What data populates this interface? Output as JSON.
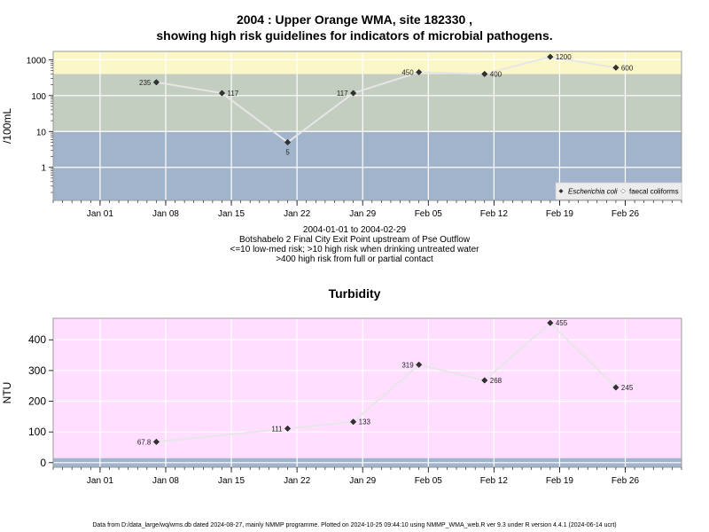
{
  "header": {
    "title_line1": "2004 : Upper Orange WMA, site 182330 ,",
    "title_line2": "showing high risk guidelines for indicators of microbial pathogens."
  },
  "caption": {
    "line1": "2004-01-01 to 2004-02-29",
    "line2": "Botshabelo 2 Final City Exit Point upstream of Pse Outflow",
    "line3": "<=10 low-med risk; >10 high risk when drinking untreated water",
    "line4": ">400 high risk from full or partial contact"
  },
  "footer": {
    "text": "Data from D:/data_large/wq/wms.db dated 2024-08-27, mainly NMMP programme. Plotted on 2024-10-25 09:44:10 using NMMP_WMA_web.R ver 9.3 under R version 4.4.1 (2024-06-14 ucrt)"
  },
  "chart_data": [
    {
      "type": "line",
      "title": "",
      "xlabel": "",
      "ylabel": "/100mL",
      "yscale": "log",
      "ylim": [
        0.12,
        1700
      ],
      "xlim": [
        "2003-12-27",
        "2004-03-03"
      ],
      "x_tick_labels": [
        "Jan 01",
        "Jan 08",
        "Jan 15",
        "Jan 22",
        "Jan 29",
        "Feb 05",
        "Feb 12",
        "Feb 19",
        "Feb 26"
      ],
      "x_ticks": [
        "2004-01-01",
        "2004-01-08",
        "2004-01-15",
        "2004-01-22",
        "2004-01-29",
        "2004-02-05",
        "2004-02-12",
        "2004-02-19",
        "2004-02-26"
      ],
      "y_tick_labels": [
        "1",
        "10",
        "100",
        "1000"
      ],
      "y_ticks": [
        1,
        10,
        100,
        1000
      ],
      "grid": true,
      "legend": "bottom-right",
      "risk_bands": [
        {
          "from": 0.12,
          "to": 10,
          "color": "#a2b4cc"
        },
        {
          "from": 10,
          "to": 400,
          "color": "#c3cdc0"
        },
        {
          "from": 400,
          "to": 1700,
          "color": "#fcf7c8"
        }
      ],
      "series": [
        {
          "name": "Escherichia coli",
          "color": "#333333",
          "line_color": "#e6e6e6",
          "x": [
            "2004-01-07",
            "2004-01-14",
            "2004-01-21",
            "2004-01-28",
            "2004-02-04",
            "2004-02-11",
            "2004-02-18",
            "2004-02-25"
          ],
          "values": [
            235,
            117,
            5,
            117,
            450,
            400,
            1200,
            600
          ],
          "labels": [
            "235",
            "117",
            "5",
            "117",
            "450",
            "400",
            "1200",
            "600"
          ]
        },
        {
          "name": "faecal coliforms",
          "color": "#ffffff",
          "x": [],
          "values": []
        }
      ]
    },
    {
      "type": "line",
      "title": "Turbidity",
      "xlabel": "",
      "ylabel": "NTU",
      "ylim": [
        -15,
        470
      ],
      "xlim": [
        "2003-12-27",
        "2004-03-03"
      ],
      "x_tick_labels": [
        "Jan 01",
        "Jan 08",
        "Jan 15",
        "Jan 22",
        "Jan 29",
        "Feb 05",
        "Feb 12",
        "Feb 19",
        "Feb 26"
      ],
      "x_ticks": [
        "2004-01-01",
        "2004-01-08",
        "2004-01-15",
        "2004-01-22",
        "2004-01-29",
        "2004-02-05",
        "2004-02-12",
        "2004-02-19",
        "2004-02-26"
      ],
      "y_tick_labels": [
        "0",
        "100",
        "200",
        "300",
        "400"
      ],
      "y_ticks": [
        0,
        100,
        200,
        300,
        400
      ],
      "grid": true,
      "risk_bands": [
        {
          "from": -15,
          "to": 15,
          "color": "#a2b4cc"
        },
        {
          "from": 15,
          "to": 470,
          "color": "#ffdeff"
        }
      ],
      "series": [
        {
          "name": "Turbidity",
          "color": "#333333",
          "line_color": "#e6e6e6",
          "x": [
            "2004-01-07",
            "2004-01-21",
            "2004-01-28",
            "2004-02-04",
            "2004-02-11",
            "2004-02-18",
            "2004-02-25"
          ],
          "values": [
            67.8,
            111,
            133,
            319,
            268,
            455,
            245
          ],
          "labels": [
            "67.8",
            "111",
            "133",
            "319",
            "268",
            "455",
            "245"
          ]
        }
      ]
    }
  ]
}
